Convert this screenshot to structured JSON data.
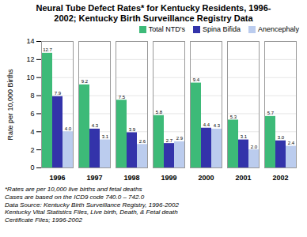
{
  "chart_data": {
    "type": "bar",
    "title": "Neural Tube Defect Rates* for Kentucky Residents, 1996-\n2002; Kentucky Birth Surveillance Registry Data",
    "ylabel": "Rate per 10,000 Births",
    "categories": [
      "1996",
      "1997",
      "1998",
      "1999",
      "2000",
      "2001",
      "2002"
    ],
    "series": [
      {
        "name": "Total NTD's",
        "color": "#3dba78",
        "values": [
          12.7,
          9.2,
          7.5,
          5.8,
          9.4,
          5.3,
          5.7
        ],
        "value_labels": [
          "12.7",
          "9.2",
          "7.5",
          "5.8",
          "9.4",
          "5.3",
          "5.7"
        ]
      },
      {
        "name": "Spina Bifida",
        "color": "#3333aa",
        "values": [
          7.9,
          4.3,
          3.9,
          2.7,
          4.4,
          3.1,
          3.0
        ],
        "value_labels": [
          "7.9",
          "4.3",
          "3.9",
          "2.7",
          "4.4",
          "3.1",
          "3.0"
        ]
      },
      {
        "name": "Anencephaly",
        "color": "#bbccee",
        "values": [
          4.0,
          3.1,
          2.6,
          2.9,
          4.3,
          2.0,
          2.4
        ],
        "value_labels": [
          "4.0",
          "3.1",
          "2.6",
          "2.9",
          "4.3",
          "2.0",
          "2.4"
        ]
      }
    ],
    "ylim": [
      0,
      14
    ],
    "yticks": [
      0,
      2,
      4,
      6,
      8,
      10,
      12,
      14
    ],
    "grid": true,
    "legend": "upper right",
    "data_labels": true,
    "annotations": [
      "*Rates are per 10,000 live births and fetal deaths",
      "Cases are based on the ICD9 code 740.0 – 742.0",
      "Data Source: Kentucky Birth Surveillance Registry, 1996-2002",
      "Kentucky Vital Statistics Files, Live birth, Death, & Fetal death",
      "Certificate Files; 1996-2002"
    ]
  }
}
